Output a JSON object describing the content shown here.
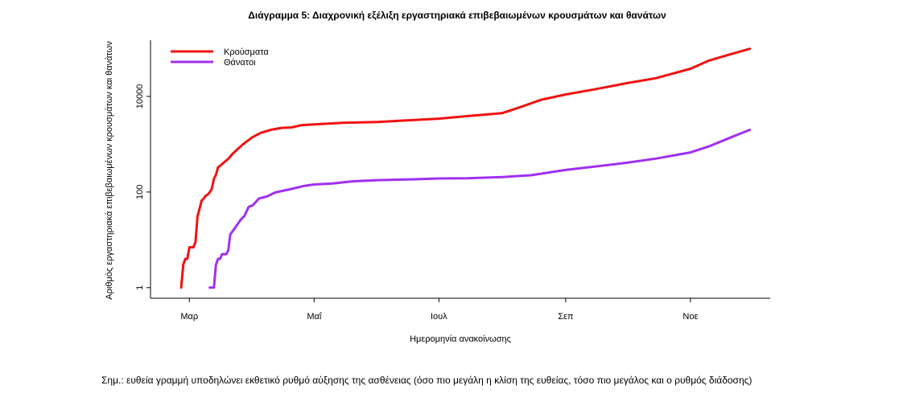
{
  "chart_data": {
    "type": "line",
    "title": "Διάγραμμα 5: Διαχρονική εξέλιξη εργαστηριακά επιβεβαιωμένων κρουσμάτων και θανάτων",
    "xlabel": "Ημερομηνία ανακοίνωσης",
    "ylabel": "Αριθμός εργαστηριακά επιβεβαιωμένων κρουσμάτων και θανάτων",
    "x_scale": "date",
    "y_scale": "log10",
    "xlim": [
      "2020-02-11",
      "2020-12-10"
    ],
    "ylim": [
      0.6,
      150000
    ],
    "x_ticks": [
      {
        "date": "2020-03-01",
        "label": "Μαρ"
      },
      {
        "date": "2020-05-01",
        "label": "Μαΐ"
      },
      {
        "date": "2020-07-01",
        "label": "Ιουλ"
      },
      {
        "date": "2020-09-01",
        "label": "Σεπ"
      },
      {
        "date": "2020-11-01",
        "label": "Νοε"
      }
    ],
    "y_ticks": [
      {
        "value": 1,
        "label": "1"
      },
      {
        "value": 100,
        "label": "100"
      },
      {
        "value": 10000,
        "label": "10000"
      }
    ],
    "legend_position": "top-left",
    "grid": false,
    "series": [
      {
        "name": "Κρούσματα",
        "color": "#f21111",
        "points": [
          [
            "2020-02-26",
            1
          ],
          [
            "2020-02-27",
            3
          ],
          [
            "2020-02-28",
            4
          ],
          [
            "2020-02-29",
            4
          ],
          [
            "2020-03-01",
            7
          ],
          [
            "2020-03-03",
            7
          ],
          [
            "2020-03-04",
            9
          ],
          [
            "2020-03-05",
            31
          ],
          [
            "2020-03-06",
            45
          ],
          [
            "2020-03-07",
            66
          ],
          [
            "2020-03-08",
            73
          ],
          [
            "2020-03-09",
            84
          ],
          [
            "2020-03-10",
            89
          ],
          [
            "2020-03-11",
            99
          ],
          [
            "2020-03-12",
            117
          ],
          [
            "2020-03-13",
            190
          ],
          [
            "2020-03-14",
            228
          ],
          [
            "2020-03-15",
            331
          ],
          [
            "2020-03-16",
            352
          ],
          [
            "2020-03-18",
            418
          ],
          [
            "2020-03-20",
            495
          ],
          [
            "2020-03-22",
            624
          ],
          [
            "2020-03-25",
            821
          ],
          [
            "2020-03-28",
            1061
          ],
          [
            "2020-04-01",
            1415
          ],
          [
            "2020-04-05",
            1735
          ],
          [
            "2020-04-10",
            2011
          ],
          [
            "2020-04-15",
            2192
          ],
          [
            "2020-04-20",
            2245
          ],
          [
            "2020-04-25",
            2517
          ],
          [
            "2020-05-01",
            2591
          ],
          [
            "2020-05-15",
            2800
          ],
          [
            "2020-06-01",
            2915
          ],
          [
            "2020-06-15",
            3148
          ],
          [
            "2020-07-01",
            3432
          ],
          [
            "2020-07-15",
            3883
          ],
          [
            "2020-08-01",
            4477
          ],
          [
            "2020-08-10",
            6000
          ],
          [
            "2020-08-20",
            8500
          ],
          [
            "2020-09-01",
            10998
          ],
          [
            "2020-09-15",
            14000
          ],
          [
            "2020-10-01",
            19000
          ],
          [
            "2020-10-15",
            24000
          ],
          [
            "2020-11-01",
            38000
          ],
          [
            "2020-11-10",
            56000
          ],
          [
            "2020-11-20",
            75000
          ],
          [
            "2020-11-30",
            99000
          ]
        ]
      },
      {
        "name": "Θάνατοι",
        "color": "#a030f0",
        "points": [
          [
            "2020-03-11",
            1
          ],
          [
            "2020-03-13",
            1
          ],
          [
            "2020-03-14",
            3
          ],
          [
            "2020-03-15",
            4
          ],
          [
            "2020-03-16",
            4
          ],
          [
            "2020-03-17",
            5
          ],
          [
            "2020-03-19",
            5
          ],
          [
            "2020-03-20",
            6
          ],
          [
            "2020-03-21",
            13
          ],
          [
            "2020-03-23",
            17
          ],
          [
            "2020-03-26",
            26
          ],
          [
            "2020-03-28",
            32
          ],
          [
            "2020-03-30",
            49
          ],
          [
            "2020-04-01",
            53
          ],
          [
            "2020-04-04",
            73
          ],
          [
            "2020-04-08",
            81
          ],
          [
            "2020-04-12",
            98
          ],
          [
            "2020-04-20",
            116
          ],
          [
            "2020-04-26",
            134
          ],
          [
            "2020-05-01",
            144
          ],
          [
            "2020-05-10",
            151
          ],
          [
            "2020-05-20",
            168
          ],
          [
            "2020-06-01",
            177
          ],
          [
            "2020-06-15",
            183
          ],
          [
            "2020-07-01",
            192
          ],
          [
            "2020-07-15",
            194
          ],
          [
            "2020-08-01",
            206
          ],
          [
            "2020-08-15",
            224
          ],
          [
            "2020-09-01",
            290
          ],
          [
            "2020-09-15",
            340
          ],
          [
            "2020-10-01",
            411
          ],
          [
            "2020-10-15",
            500
          ],
          [
            "2020-11-01",
            673
          ],
          [
            "2020-11-10",
            900
          ],
          [
            "2020-11-20",
            1350
          ],
          [
            "2020-11-30",
            2000
          ]
        ]
      }
    ]
  },
  "note": "Σημ.: ευθεία γραμμή υποδηλώνει εκθετικό ρυθμό αύξησης της ασθένειας (όσο πιο μεγάλη η κλίση της ευθείας, τόσο πιο μεγάλος και ο ρυθμός διάδοσης)"
}
